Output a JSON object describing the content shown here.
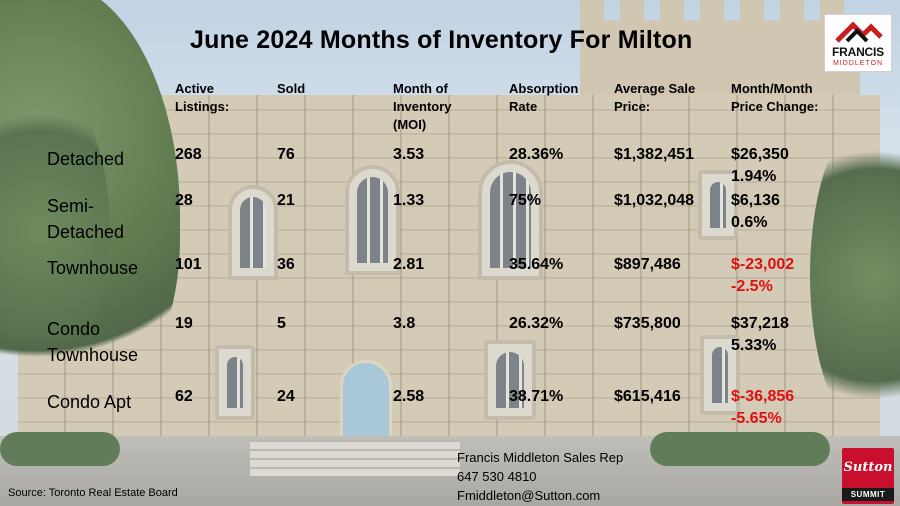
{
  "title": "June 2024 Months of Inventory For Milton",
  "logo": {
    "name": "FRANCIS",
    "sub": "MIDDLETON"
  },
  "columns": [
    "Active\nListings:",
    "Sold",
    "Month of\nInventory\n(MOI)",
    "Absorption\nRate",
    "Average Sale\nPrice:",
    "Month/Month\nPrice Change:"
  ],
  "rows": [
    {
      "label": "Detached",
      "active": "268",
      "sold": "76",
      "moi": "3.53",
      "absorption": "28.36%",
      "avg_price": "$1,382,451",
      "change_amount": "$26,350",
      "change_pct": "1.94%",
      "negative": false
    },
    {
      "label": "Semi-\nDetached",
      "active": "28",
      "sold": "21",
      "moi": "1.33",
      "absorption": "75%",
      "avg_price": "$1,032,048",
      "change_amount": "$6,136",
      "change_pct": "0.6%",
      "negative": false
    },
    {
      "label": "Townhouse",
      "active": "101",
      "sold": "36",
      "moi": "2.81",
      "absorption": "35.64%",
      "avg_price": "$897,486",
      "change_amount": "$-23,002",
      "change_pct": "-2.5%",
      "negative": true
    },
    {
      "label": "Condo\nTownhouse",
      "active": "19",
      "sold": "5",
      "moi": "3.8",
      "absorption": "26.32%",
      "avg_price": "$735,800",
      "change_amount": "$37,218",
      "change_pct": "5.33%",
      "negative": false
    },
    {
      "label": "Condo Apt",
      "active": "62",
      "sold": "24",
      "moi": "2.58",
      "absorption": "38.71%",
      "avg_price": "$615,416",
      "change_amount": "$-36,856",
      "change_pct": "-5.65%",
      "negative": true
    }
  ],
  "source": "Source: Toronto Real Estate Board",
  "contact": {
    "name": "Francis Middleton Sales Rep",
    "phone": "647 530 4810",
    "email": "Fmiddleton@Sutton.com"
  },
  "brand": {
    "name": "Sutton",
    "sub": "SUMMIT"
  },
  "colors": {
    "negative": "#e01010",
    "brand_red": "#c8102e"
  }
}
